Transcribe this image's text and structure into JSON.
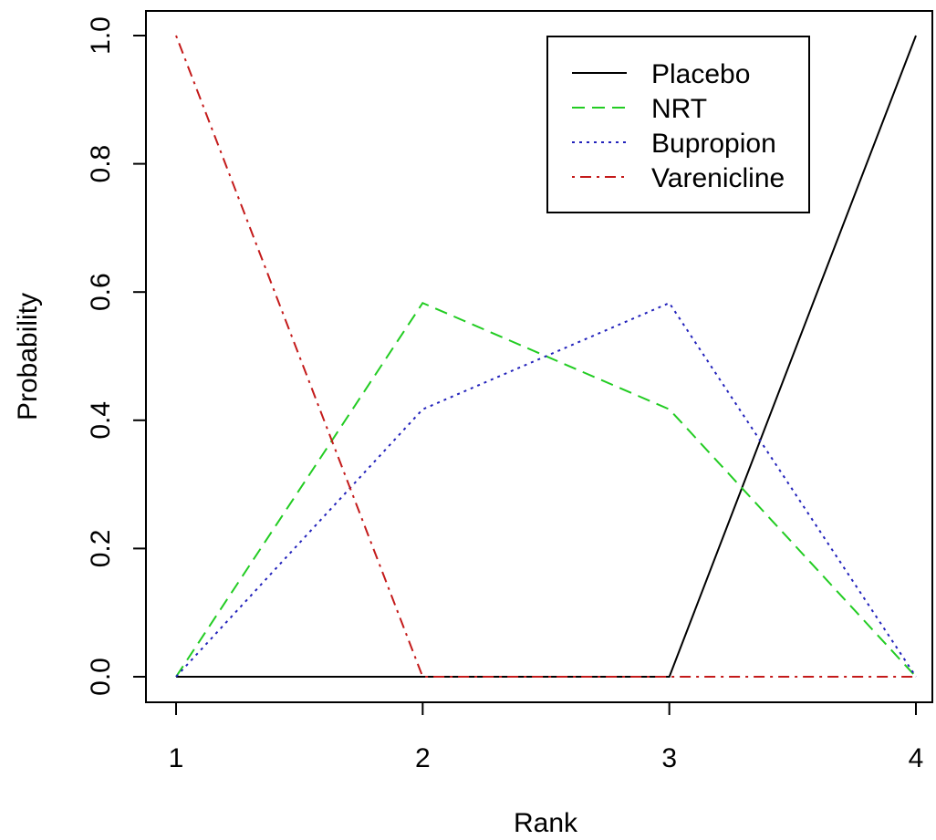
{
  "chart_data": {
    "type": "line",
    "title": "",
    "xlabel": "Rank",
    "ylabel": "Probability",
    "x": [
      1,
      2,
      3,
      4
    ],
    "xlim": [
      1,
      4
    ],
    "ylim": [
      0,
      1
    ],
    "xticks": [
      "1",
      "2",
      "3",
      "4"
    ],
    "yticks": [
      "0.0",
      "0.2",
      "0.4",
      "0.6",
      "0.8",
      "1.0"
    ],
    "grid": false,
    "legend_position": "top-right",
    "series": [
      {
        "name": "Placebo",
        "values": [
          0,
          0,
          0,
          1
        ],
        "color": "#000000",
        "dash": "solid"
      },
      {
        "name": "NRT",
        "values": [
          0,
          0.583,
          0.417,
          0
        ],
        "color": "#22cc22",
        "dash": "dashed"
      },
      {
        "name": "Bupropion",
        "values": [
          0,
          0.417,
          0.583,
          0
        ],
        "color": "#2222bb",
        "dash": "dotted"
      },
      {
        "name": "Varenicline",
        "values": [
          1,
          0,
          0,
          0
        ],
        "color": "#c41a1a",
        "dash": "dotdash"
      }
    ]
  }
}
